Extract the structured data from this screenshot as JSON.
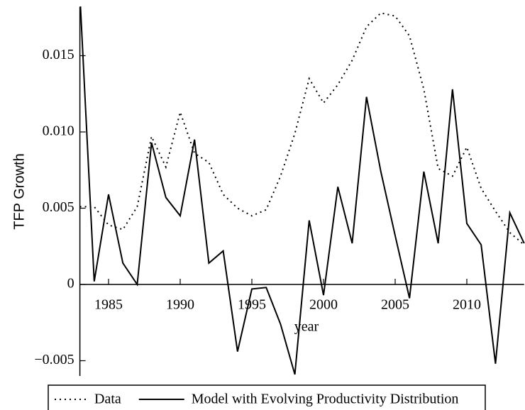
{
  "chart_data": {
    "type": "line",
    "x_label": "year",
    "y_label": "TFP Growth",
    "x": [
      1983,
      1984,
      1985,
      1986,
      1987,
      1988,
      1989,
      1990,
      1991,
      1992,
      1993,
      1994,
      1995,
      1996,
      1997,
      1998,
      1999,
      2000,
      2001,
      2002,
      2003,
      2004,
      2005,
      2006,
      2007,
      2008,
      2009,
      2010,
      2011,
      2012,
      2013,
      2014
    ],
    "series": [
      {
        "name": "Data",
        "color": "#000000",
        "style": "dotted",
        "values": [
          0.0051,
          0.0051,
          0.0039,
          0.0036,
          0.0051,
          0.0097,
          0.0077,
          0.0113,
          0.0086,
          0.008,
          0.0059,
          0.005,
          0.0045,
          0.0049,
          0.0071,
          0.0099,
          0.0135,
          0.0119,
          0.0131,
          0.0147,
          0.0169,
          0.0178,
          0.0176,
          0.0163,
          0.0128,
          0.0076,
          0.0071,
          0.009,
          0.0063,
          0.0048,
          0.0034,
          0.0026
        ]
      },
      {
        "name": "Model with Evolving Productivity Distribution",
        "color": "#000000",
        "style": "solid",
        "values": [
          0.019,
          0.0002,
          0.0059,
          0.0014,
          0.0,
          0.0093,
          0.0057,
          0.0045,
          0.0095,
          0.0014,
          0.0022,
          -0.0044,
          -0.0003,
          -0.0002,
          -0.0026,
          -0.0059,
          0.0042,
          -0.0007,
          0.0064,
          0.0027,
          0.0123,
          0.0074,
          0.0032,
          -0.0009,
          0.0074,
          0.0027,
          0.0128,
          0.004,
          0.0026,
          -0.0052,
          0.0047,
          0.0027
        ]
      }
    ],
    "xlim": [
      1983,
      2014
    ],
    "ylim": [
      -0.006,
      0.0182
    ],
    "xticks": [
      1985,
      1990,
      1995,
      2000,
      2005,
      2010
    ],
    "yticks": [
      {
        "value": -0.005,
        "label": "−0.005"
      },
      0,
      0.005,
      {
        "value": 0.01,
        "label": "0.010"
      },
      0.015
    ],
    "legend": "bottom"
  }
}
